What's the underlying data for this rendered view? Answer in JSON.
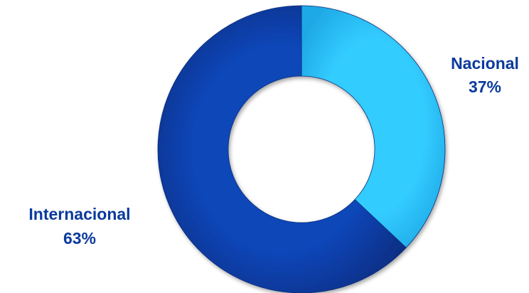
{
  "chart_data": {
    "type": "pie",
    "variant": "donut",
    "title": "",
    "slices": [
      {
        "label": "Nacional",
        "value": 37,
        "value_label": "37%",
        "color": "#33CCFF"
      },
      {
        "label": "Internacional",
        "value": 63,
        "value_label": "63%",
        "color": "#0A3A9C"
      }
    ],
    "label_color": "#0A3A9C",
    "legend": "none"
  }
}
